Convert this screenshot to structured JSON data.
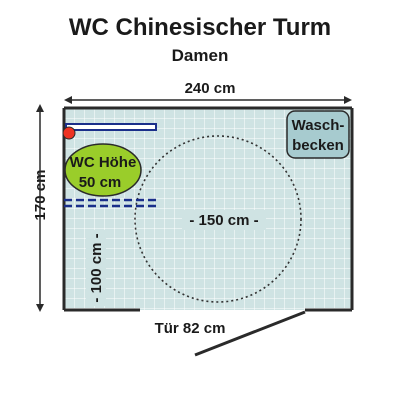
{
  "title": "WC Chinesischer Turm",
  "subtitle": "Damen",
  "dimensions": {
    "width_label": "240 cm",
    "height_label": "170 cm",
    "circle_label": "- 150 cm -",
    "clearance_label": "- 100 cm -",
    "door_label": "Tür 82 cm"
  },
  "fixtures": {
    "wc_line1": "WC Höhe",
    "wc_line2": "50 cm",
    "sink_line1": "Wasch-",
    "sink_line2": "becken"
  },
  "colors": {
    "floor_tile": "#cfe3e3",
    "grid_line": "#ffffff",
    "wall": "#2a2a2a",
    "wc_fill": "#9acd2a",
    "sink_fill": "#a7cbcf",
    "grab_bar": "#1a2f8a",
    "alarm_button": "#ee3322"
  }
}
